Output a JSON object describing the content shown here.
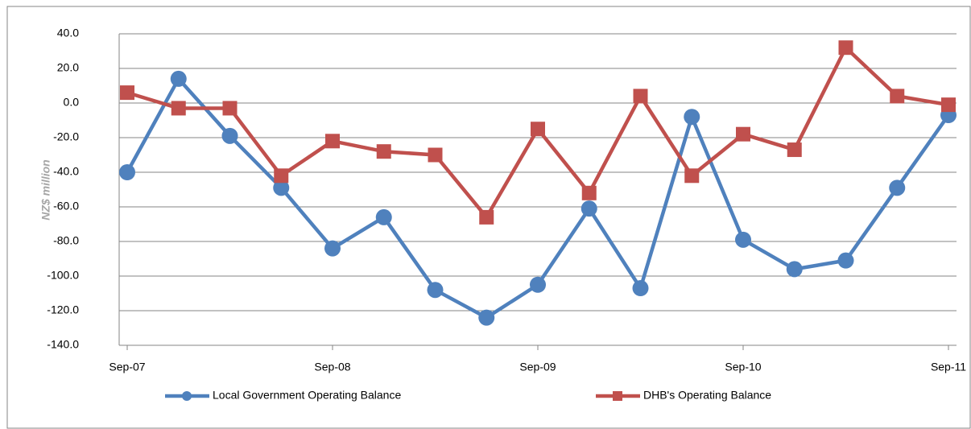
{
  "chart_data": {
    "type": "line",
    "y_label": "NZ$ million",
    "categories": [
      "Sep-07",
      null,
      null,
      null,
      "Sep-08",
      null,
      null,
      null,
      "Sep-09",
      null,
      null,
      null,
      "Sep-10",
      null,
      null,
      null,
      "Sep-11"
    ],
    "series": [
      {
        "name": "Local Government Operating Balance",
        "color": "#4f81bd",
        "marker": "circle",
        "values": [
          -40,
          14,
          -19,
          -49,
          -84,
          -66,
          -108,
          -124,
          -105,
          -61,
          -107,
          -8,
          -79,
          -96,
          -91,
          -49,
          -7
        ]
      },
      {
        "name": "DHB's Operating Balance",
        "color": "#c0504d",
        "marker": "square",
        "values": [
          6,
          -3,
          -3,
          -42,
          -22,
          -28,
          -30,
          -66,
          -15,
          -52,
          4,
          -42,
          -18,
          -27,
          32,
          4,
          -1
        ]
      }
    ],
    "ylim": [
      -140,
      40
    ],
    "yticks": [
      {
        "value": -140,
        "label": "-140.0"
      },
      {
        "value": -120,
        "label": "-120.0"
      },
      {
        "value": -100,
        "label": "-100.0"
      },
      {
        "value": -80,
        "label": "-80.0"
      },
      {
        "value": -60,
        "label": "-60.0"
      },
      {
        "value": -40,
        "label": "-40.0"
      },
      {
        "value": -20,
        "label": "-20.0"
      },
      {
        "value": 0,
        "label": "0.0"
      },
      {
        "value": 20,
        "label": "20.0"
      },
      {
        "value": 40,
        "label": "40.0"
      }
    ],
    "grid": true,
    "legend": "bottom"
  }
}
